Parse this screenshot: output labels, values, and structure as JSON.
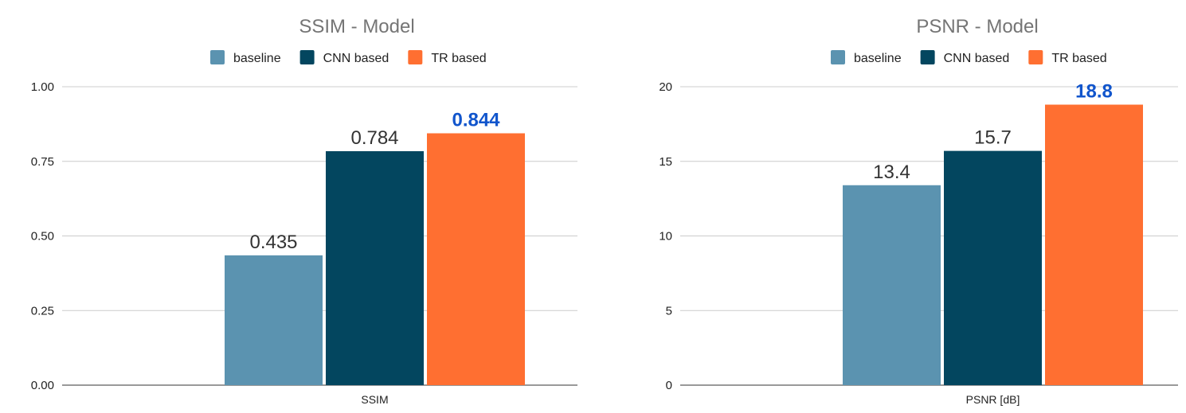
{
  "chart_data": [
    {
      "type": "bar",
      "title": "SSIM - Model",
      "categories": [
        "SSIM"
      ],
      "series": [
        {
          "name": "baseline",
          "values": [
            0.435
          ],
          "label": "0.435",
          "color": "#5b93b0"
        },
        {
          "name": "CNN based",
          "values": [
            0.784
          ],
          "label": "0.784",
          "color": "#03465f"
        },
        {
          "name": "TR based",
          "values": [
            0.844
          ],
          "label": "0.844",
          "color": "#ff6f31",
          "label_color": "#1155cc",
          "label_bold": true
        }
      ],
      "yticks": [
        0,
        0.25,
        0.5,
        0.75,
        1.0
      ],
      "ytick_labels": [
        "0.00",
        "0.25",
        "0.50",
        "0.75",
        "1.00"
      ],
      "ylim": [
        0,
        1.0
      ],
      "xlabel": "SSIM",
      "ylabel": "",
      "grid": true,
      "legend": "top"
    },
    {
      "type": "bar",
      "title": "PSNR - Model",
      "categories": [
        "PSNR [dB]"
      ],
      "series": [
        {
          "name": "baseline",
          "values": [
            13.4
          ],
          "label": "13.4",
          "color": "#5b93b0"
        },
        {
          "name": "CNN based",
          "values": [
            15.7
          ],
          "label": "15.7",
          "color": "#03465f"
        },
        {
          "name": "TR based",
          "values": [
            18.8
          ],
          "label": "18.8",
          "color": "#ff6f31",
          "label_color": "#1155cc",
          "label_bold": true
        }
      ],
      "yticks": [
        0,
        5,
        10,
        15,
        20
      ],
      "ytick_labels": [
        "0",
        "5",
        "10",
        "15",
        "20"
      ],
      "ylim": [
        0,
        20
      ],
      "xlabel": "PSNR [dB]",
      "ylabel": "",
      "grid": true,
      "legend": "top"
    }
  ]
}
